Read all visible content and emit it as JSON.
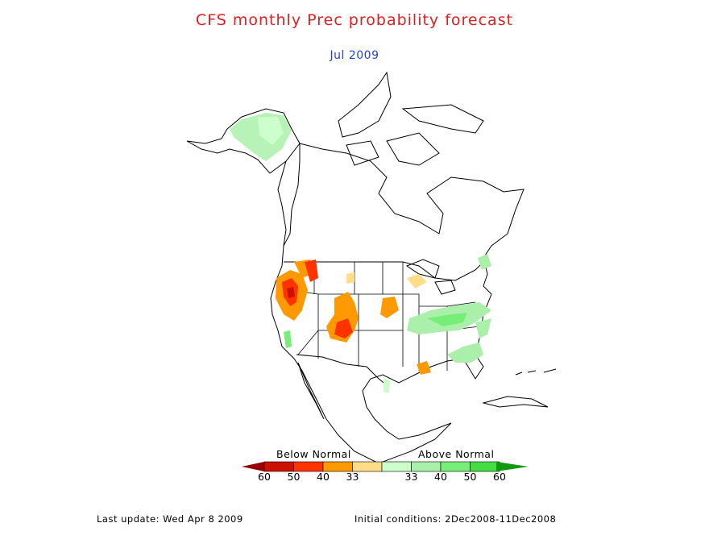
{
  "title": "CFS monthly Prec probability forecast",
  "subtitle": "Jul 2009",
  "colors": {
    "title": "#e02020",
    "subtitle": "#2244cc",
    "outline": "#000000"
  },
  "legend": {
    "below_label": "Below Normal",
    "above_label": "Above Normal",
    "below_bins": [
      {
        "label": "60",
        "color": "#cc1100"
      },
      {
        "label": "50",
        "color": "#ff3300"
      },
      {
        "label": "40",
        "color": "#ff9900"
      },
      {
        "label": "33",
        "color": "#ffdd88"
      }
    ],
    "above_bins": [
      {
        "label": "33",
        "color": "#ccffcc"
      },
      {
        "label": "40",
        "color": "#aaf0aa"
      },
      {
        "label": "50",
        "color": "#77ee77"
      },
      {
        "label": "60",
        "color": "#44dd44"
      }
    ],
    "extreme_below_color": "#990000",
    "extreme_above_color": "#119911"
  },
  "footer": {
    "last_update": "Last update: Wed Apr 8 2009",
    "initial_conditions": "Initial conditions: 2Dec2008-11Dec2008"
  }
}
